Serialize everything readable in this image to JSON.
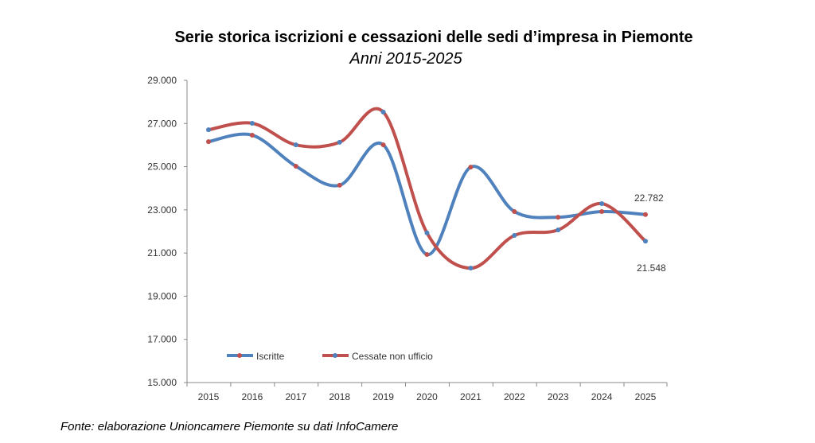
{
  "chart_data": {
    "type": "line",
    "title": "Serie storica iscrizioni e cessazioni delle sedi d’impresa in Piemonte",
    "subtitle": "Anni 2015-2025",
    "source": "Fonte: elaborazione Unioncamere Piemonte su dati InfoCamere",
    "x": [
      "2015",
      "2016",
      "2017",
      "2018",
      "2019",
      "2020",
      "2021",
      "2022",
      "2023",
      "2024",
      "2025"
    ],
    "ylim": [
      15000,
      29000
    ],
    "yticks": [
      "15.000",
      "17.000",
      "19.000",
      "21.000",
      "23.000",
      "25.000",
      "27.000",
      "29.000"
    ],
    "legend_position": "bottom-left",
    "series": [
      {
        "name": "Iscritte",
        "color": "#4f81bd",
        "marker": "#c0504d",
        "values": [
          26160,
          26460,
          25020,
          24140,
          26010,
          20930,
          24980,
          22920,
          22660,
          22920,
          22782
        ]
      },
      {
        "name": "Cessate non ufficio",
        "color": "#c0504d",
        "marker": "#4f81bd",
        "values": [
          26710,
          27010,
          26010,
          26130,
          27530,
          21930,
          20300,
          21815,
          22070,
          23290,
          21548
        ]
      }
    ],
    "annotations": [
      "22.782",
      "21.548"
    ]
  }
}
